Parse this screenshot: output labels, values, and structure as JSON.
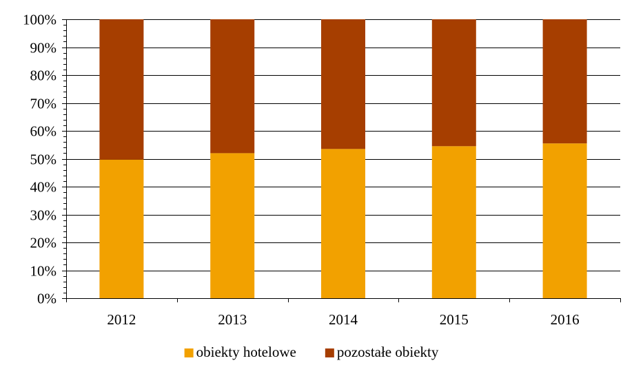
{
  "chart_data": {
    "type": "bar",
    "stacked": true,
    "percent_stacked": true,
    "categories": [
      "2012",
      "2013",
      "2014",
      "2015",
      "2016"
    ],
    "series": [
      {
        "name": "obiekty hotelowe",
        "values": [
          49.7,
          52.0,
          53.5,
          54.5,
          55.5
        ],
        "color": "#F2A100"
      },
      {
        "name": "pozostałe obiekty",
        "values": [
          50.3,
          48.0,
          46.5,
          45.5,
          44.5
        ],
        "color": "#A63E00"
      }
    ],
    "ylim": [
      0,
      100
    ],
    "y_ticks": [
      "0%",
      "10%",
      "20%",
      "30%",
      "40%",
      "50%",
      "60%",
      "70%",
      "80%",
      "90%",
      "100%"
    ],
    "y_minor_ticks_per_major": 5,
    "grid": true,
    "grid_color": "#000000",
    "legend_position": "bottom-center"
  }
}
